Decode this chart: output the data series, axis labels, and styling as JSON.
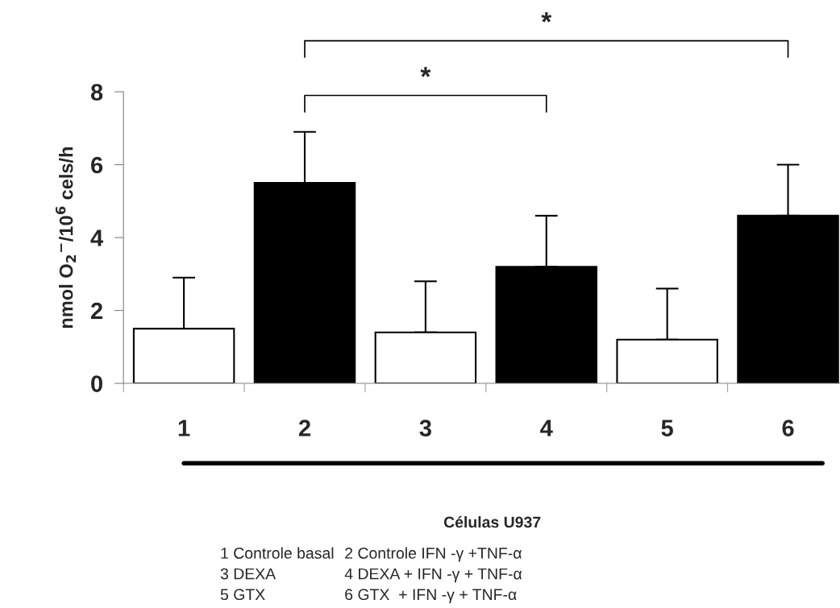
{
  "chart_data": {
    "type": "bar",
    "ylabel": "nmol O$_{2}$$^{−}$/10$^{6}$ cels/h",
    "categories": [
      "1",
      "2",
      "3",
      "4",
      "5",
      "6"
    ],
    "values": [
      1.5,
      5.5,
      1.4,
      3.2,
      1.2,
      4.6
    ],
    "colors": [
      "#ffffff",
      "#000000",
      "#ffffff",
      "#000000",
      "#ffffff",
      "#000000"
    ],
    "errors": [
      [
        1.5,
        2.9
      ],
      [
        5.5,
        6.9
      ],
      [
        1.4,
        2.8
      ],
      [
        3.2,
        4.6
      ],
      [
        1.2,
        2.6
      ],
      [
        4.6,
        6.0
      ]
    ],
    "ylim": [
      0,
      8
    ],
    "yticks": [
      0,
      2,
      4,
      6,
      8
    ],
    "grid": false,
    "legend": false,
    "annotations": [
      "*",
      "*",
      "Células U937",
      "1 Controle basal",
      "2 Controle IFN -γ +TNF-α",
      "3 DEXA",
      "4 DEXA + IFN -γ + TNF-α",
      "5 GTX",
      "6 GTX  + IFN -γ + TNF-α"
    ]
  }
}
